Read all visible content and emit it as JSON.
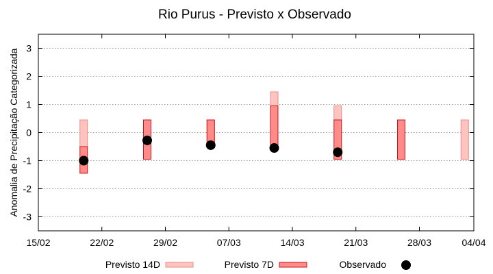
{
  "chart_data": {
    "type": "range-bar-with-points",
    "title": "Rio Purus - Previsto x Observado",
    "xlabel": "",
    "ylabel": "Anomalia de Precipitação Categorizada",
    "xlim_days": [
      0,
      48
    ],
    "ylim": [
      -3.5,
      3.5
    ],
    "x_ticks": [
      {
        "day": 0,
        "label": "15/02"
      },
      {
        "day": 7,
        "label": "22/02"
      },
      {
        "day": 14,
        "label": "29/02"
      },
      {
        "day": 21,
        "label": "07/03"
      },
      {
        "day": 28,
        "label": "14/03"
      },
      {
        "day": 35,
        "label": "21/03"
      },
      {
        "day": 42,
        "label": "28/03"
      },
      {
        "day": 48,
        "label": "04/04"
      }
    ],
    "y_ticks": [
      3,
      2,
      1,
      0,
      -1,
      -2,
      -3
    ],
    "grid": true,
    "series": [
      {
        "name": "Previsto 14D",
        "color": "#ffc4c0",
        "edge": "#e88a86",
        "ranges": [
          {
            "day": 5,
            "low": -0.5,
            "high": 0.45
          },
          {
            "day": 12,
            "low": -0.5,
            "high": 0.45
          },
          {
            "day": 19,
            "low": -0.5,
            "high": 0.45
          },
          {
            "day": 26,
            "low": 0.95,
            "high": 1.45
          },
          {
            "day": 33,
            "low": 0.45,
            "high": 0.95
          },
          {
            "day": 47,
            "low": -0.95,
            "high": 0.45
          }
        ]
      },
      {
        "name": "Previsto 7D",
        "color": "#ff8c88",
        "edge": "#c8141c",
        "ranges": [
          {
            "day": 5,
            "low": -1.45,
            "high": -0.5
          },
          {
            "day": 12,
            "low": -0.95,
            "high": 0.45
          },
          {
            "day": 19,
            "low": -0.5,
            "high": 0.45
          },
          {
            "day": 26,
            "low": -0.5,
            "high": 0.95
          },
          {
            "day": 33,
            "low": -0.95,
            "high": 0.45
          },
          {
            "day": 40,
            "low": -0.95,
            "high": 0.45
          }
        ]
      },
      {
        "name": "Observado",
        "color": "#000000",
        "points": [
          {
            "day": 5,
            "value": -1.0
          },
          {
            "day": 12,
            "value": -0.28
          },
          {
            "day": 19,
            "value": -0.45
          },
          {
            "day": 26,
            "value": -0.55
          },
          {
            "day": 33,
            "value": -0.7
          }
        ]
      }
    ]
  }
}
